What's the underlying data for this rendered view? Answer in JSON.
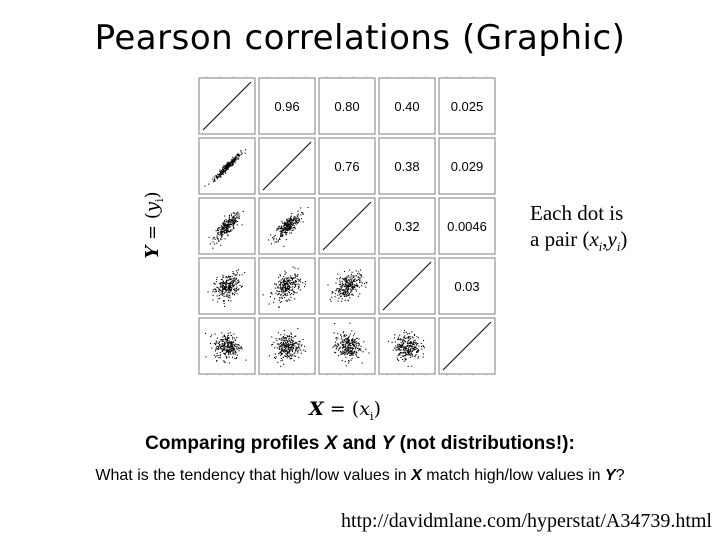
{
  "title": "Pearson correlations (Graphic)",
  "y_axis": {
    "var": "Y",
    "eq": " = (",
    "val": "y",
    "sub": "i",
    "close": ")"
  },
  "x_axis": {
    "var": "X",
    "eq": " = (",
    "val": "x",
    "sub": "i",
    "close": ")"
  },
  "note": {
    "line1": "Each dot is",
    "line2_prefix": "a pair (",
    "x": "x",
    "sub1": "i",
    "comma": ",",
    "y": "y",
    "sub2": "i",
    "close": ")"
  },
  "subtitle": {
    "part1": "Comparing profiles ",
    "x": "X",
    "part2": " and ",
    "y": "Y",
    "part3": " (not distributions!):"
  },
  "question": {
    "part1": "What is the tendency that high/low values in ",
    "x": "X",
    "part2": " match high/low values in ",
    "y": "Y",
    "part3": "?"
  },
  "url": "http://davidmlane.com/hyperstat/A34739.html",
  "matrix": {
    "size": 5,
    "upper_labels": [
      {
        "row": 0,
        "col": 1,
        "text": "0.96"
      },
      {
        "row": 0,
        "col": 2,
        "text": "0.80"
      },
      {
        "row": 0,
        "col": 3,
        "text": "0.40"
      },
      {
        "row": 0,
        "col": 4,
        "text": "0.025"
      },
      {
        "row": 1,
        "col": 2,
        "text": "0.76"
      },
      {
        "row": 1,
        "col": 3,
        "text": "0.38"
      },
      {
        "row": 1,
        "col": 4,
        "text": "0.029"
      },
      {
        "row": 2,
        "col": 3,
        "text": "0.32"
      },
      {
        "row": 2,
        "col": 4,
        "text": "0.0046"
      },
      {
        "row": 3,
        "col": 4,
        "text": "0.03"
      }
    ],
    "lower_correlations": [
      {
        "row": 1,
        "col": 0,
        "r": 0.96
      },
      {
        "row": 2,
        "col": 0,
        "r": 0.8
      },
      {
        "row": 2,
        "col": 1,
        "r": 0.76
      },
      {
        "row": 3,
        "col": 0,
        "r": 0.4
      },
      {
        "row": 3,
        "col": 1,
        "r": 0.38
      },
      {
        "row": 3,
        "col": 2,
        "r": 0.32
      },
      {
        "row": 4,
        "col": 0,
        "r": 0.025
      },
      {
        "row": 4,
        "col": 1,
        "r": 0.029
      },
      {
        "row": 4,
        "col": 2,
        "r": 0.0046
      },
      {
        "row": 4,
        "col": 3,
        "r": 0.03
      }
    ],
    "point_color": "#000000",
    "panel_border_color": "#7f7f7f"
  }
}
